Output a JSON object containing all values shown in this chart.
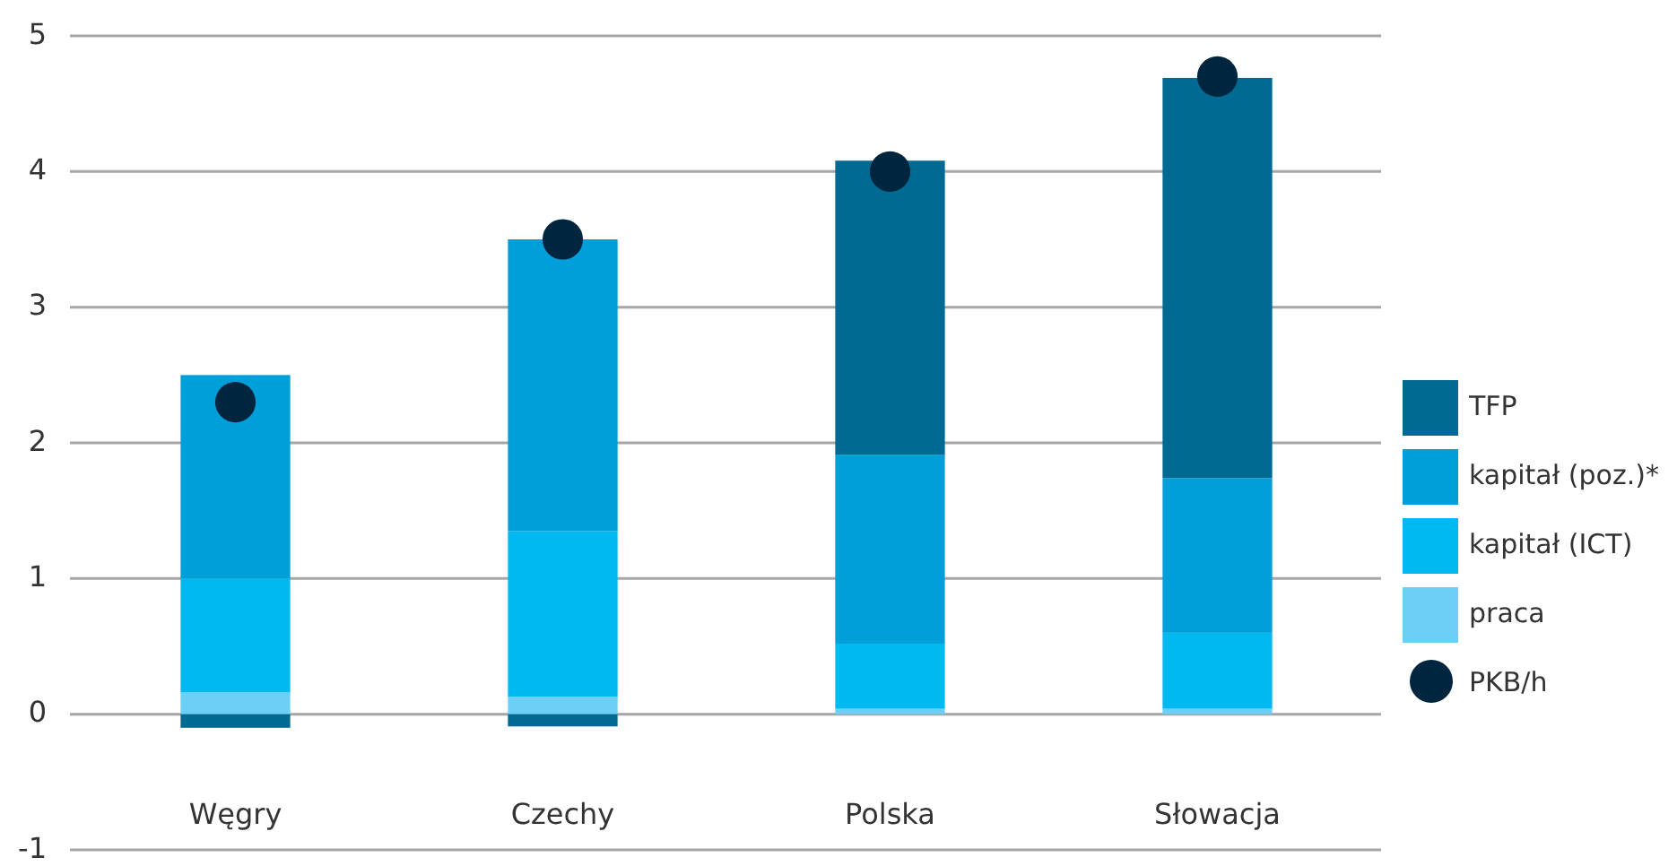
{
  "chart_data": {
    "type": "bar",
    "stacked": true,
    "categories": [
      "Węgry",
      "Czechy",
      "Polska",
      "Słowacja"
    ],
    "series": [
      {
        "name": "praca",
        "color": "#6dcff6",
        "values": [
          0.16,
          0.13,
          0.04,
          0.04
        ]
      },
      {
        "name": "kapitał (ICT)",
        "color": "#00b9f0",
        "values": [
          0.84,
          1.22,
          0.48,
          0.56
        ]
      },
      {
        "name": "kapitał (poz.)*",
        "color": "#009fd9",
        "values": [
          1.5,
          2.15,
          1.39,
          1.14
        ]
      },
      {
        "name": "TFP",
        "color": "#006a93",
        "values": [
          -0.1,
          -0.09,
          2.17,
          2.95
        ]
      },
      {
        "name": "PKB/h",
        "type": "scatter",
        "marker": "circle",
        "color": "#00263f",
        "x": [
          "Węgry",
          "Czechy",
          "Polska",
          "Słowacja"
        ],
        "values": [
          2.3,
          3.5,
          4.0,
          4.7
        ]
      }
    ],
    "ylim": [
      -1,
      5
    ],
    "yticks": [
      -1,
      0,
      1,
      2,
      3,
      4,
      5
    ],
    "grid": "y",
    "legend": "right"
  }
}
